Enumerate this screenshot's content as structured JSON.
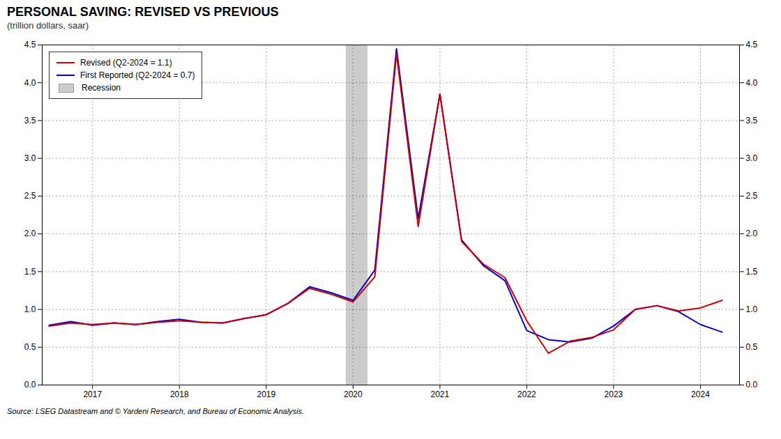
{
  "chart_data": {
    "type": "line",
    "title": "PERSONAL SAVING: REVISED VS PREVIOUS",
    "subtitle": "(trillion dollars, saar)",
    "source": "Source: LSEG Datastream and © Yardeni Research, and Bureau of Economic Analysis.",
    "x": [
      2016.5,
      2016.75,
      2017.0,
      2017.25,
      2017.5,
      2017.75,
      2018.0,
      2018.25,
      2018.5,
      2018.75,
      2019.0,
      2019.25,
      2019.5,
      2019.75,
      2020.0,
      2020.25,
      2020.5,
      2020.75,
      2021.0,
      2021.25,
      2021.5,
      2021.75,
      2022.0,
      2022.25,
      2022.5,
      2022.75,
      2023.0,
      2023.25,
      2023.5,
      2023.75,
      2024.0,
      2024.25
    ],
    "series": [
      {
        "name": "Revised (Q2-2024 = 1.1)",
        "color": "#CC0000",
        "values": [
          0.78,
          0.82,
          0.8,
          0.82,
          0.8,
          0.83,
          0.85,
          0.83,
          0.82,
          0.88,
          0.93,
          1.08,
          1.28,
          1.2,
          1.1,
          1.43,
          4.38,
          2.1,
          3.85,
          1.9,
          1.6,
          1.42,
          0.85,
          0.42,
          0.58,
          0.63,
          0.73,
          1.0,
          1.05,
          0.98,
          1.02,
          1.12
        ]
      },
      {
        "name": "First Reported (Q2-2024 = 0.7)",
        "color": "#0000CC",
        "values": [
          0.79,
          0.84,
          0.79,
          0.82,
          0.8,
          0.84,
          0.87,
          0.83,
          0.82,
          0.88,
          0.93,
          1.08,
          1.3,
          1.22,
          1.12,
          1.52,
          4.45,
          2.2,
          3.85,
          1.92,
          1.58,
          1.38,
          0.72,
          0.6,
          0.57,
          0.62,
          0.78,
          1.0,
          1.05,
          0.97,
          0.8,
          0.7
        ]
      }
    ],
    "recession": {
      "name": "Recession",
      "start": 2019.92,
      "end": 2020.17,
      "color": "#CCCCCC"
    },
    "xlim": [
      2016.42,
      2024.45
    ],
    "xticks": [
      2017,
      2018,
      2019,
      2020,
      2021,
      2022,
      2023,
      2024
    ],
    "ylim": [
      0.0,
      4.5
    ],
    "yticks": [
      {
        "value": 0,
        "label": "0.0"
      },
      0.5,
      {
        "value": 1,
        "label": "1.0"
      },
      1.5,
      {
        "value": 2,
        "label": "2.0"
      },
      2.5,
      {
        "value": 3,
        "label": "3.0"
      },
      3.5,
      {
        "value": 4,
        "label": "4.0"
      },
      4.5
    ],
    "grid": true,
    "legend": "upper left"
  }
}
